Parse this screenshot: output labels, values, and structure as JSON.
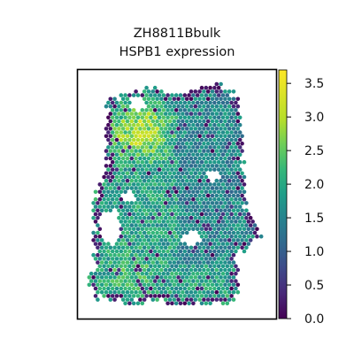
{
  "chart_data": {
    "type": "scatter",
    "title_line1": "ZH8811Bbulk",
    "title_line2": "HSPB1 expression",
    "xlabel": "",
    "ylabel": "",
    "show_axis_ticks": false,
    "grid": false,
    "legend": "colorbar-right",
    "colormap": "viridis",
    "color_range": [
      0.0,
      3.7
    ],
    "colorbar_ticks": [
      "0.0",
      "0.5",
      "1.0",
      "1.5",
      "2.0",
      "2.5",
      "3.0",
      "3.5"
    ],
    "colorbar_tick_values": [
      0.0,
      0.5,
      1.0,
      1.5,
      2.0,
      2.5,
      3.0,
      3.5
    ],
    "spot_shape": "hexagonal-spot",
    "typical_expression": 1.9,
    "high_expression_region": "upper-left",
    "peak_expression": 3.5
  }
}
